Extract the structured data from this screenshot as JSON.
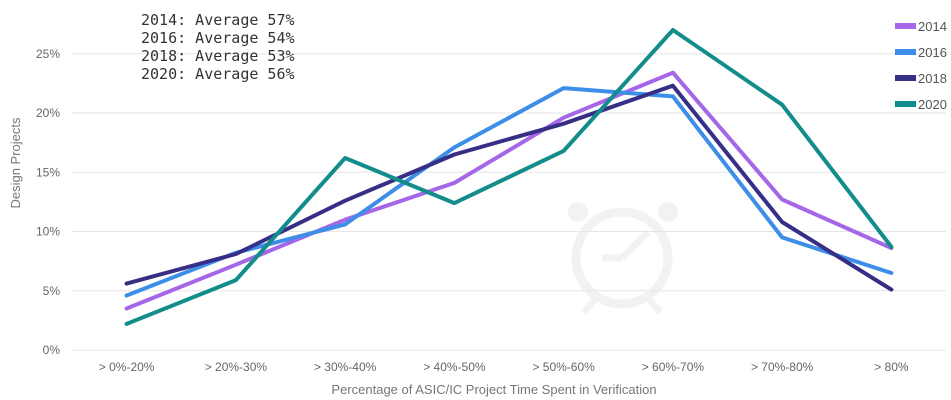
{
  "chart_data": {
    "type": "line",
    "title": "",
    "xlabel": "Percentage of ASIC/IC Project Time Spent in Verification",
    "ylabel": "Design Projects",
    "categories": [
      "> 0%-20%",
      "> 20%-30%",
      "> 30%-40%",
      "> 40%-50%",
      "> 50%-60%",
      "> 60%-70%",
      "> 70%-80%",
      "> 80%"
    ],
    "ylim": [
      0,
      0.27
    ],
    "yticks": [
      0,
      0.05,
      0.1,
      0.15,
      0.2,
      0.25
    ],
    "ytick_labels": [
      "0%",
      "5%",
      "10%",
      "15%",
      "20%",
      "25%"
    ],
    "grid": true,
    "legend_position": "right",
    "series": [
      {
        "name": "2014",
        "color": "#a566e8",
        "values": [
          0.035,
          0.072,
          0.11,
          0.141,
          0.196,
          0.234,
          0.127,
          0.086
        ]
      },
      {
        "name": "2016",
        "color": "#3d8ee8",
        "values": [
          0.046,
          0.082,
          0.106,
          0.171,
          0.221,
          0.214,
          0.095,
          0.065
        ]
      },
      {
        "name": "2018",
        "color": "#372f85",
        "values": [
          0.056,
          0.081,
          0.126,
          0.165,
          0.191,
          0.223,
          0.108,
          0.051
        ]
      },
      {
        "name": "2020",
        "color": "#138c8c",
        "values": [
          0.022,
          0.059,
          0.162,
          0.124,
          0.168,
          0.27,
          0.207,
          0.087
        ]
      }
    ],
    "annotations": [
      "2014: Average 57%",
      "2016: Average 54%",
      "2018: Average 53%",
      "2020: Average 56%"
    ],
    "watermark": "alarm-clock-icon"
  }
}
